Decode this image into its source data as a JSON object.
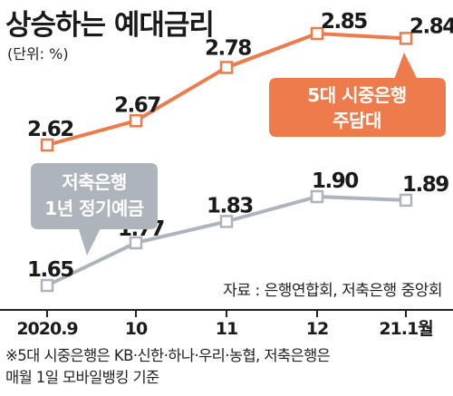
{
  "title": "상승하는 예대금리",
  "unit": "(단위: %)",
  "source": "자료 : 은행연합회, 저축은행 중앙회",
  "footnote": [
    "※5대 시중은행은 KB·신한·하나·우리·농협, 저축은행은",
    "매월 1일 모바일뱅킹 기준"
  ],
  "colors": {
    "commercial": "#ee7b4b",
    "savings": "#aeb4bb",
    "text": "#1a1a1a"
  },
  "chart_data": {
    "type": "line",
    "categories": [
      "2020.9",
      "10",
      "11",
      "12",
      "21.1월"
    ],
    "series": [
      {
        "name": "5대 시중은행 주담대",
        "label_lines": [
          "5대 시중은행",
          "주담대"
        ],
        "values": [
          2.62,
          2.67,
          2.78,
          2.85,
          2.84
        ]
      },
      {
        "name": "저축은행 1년 정기예금",
        "label_lines": [
          "저축은행",
          "1년 정기예금"
        ],
        "values": [
          1.65,
          1.77,
          1.83,
          1.9,
          1.89
        ]
      }
    ],
    "ylabel": "",
    "xlabel": ""
  }
}
